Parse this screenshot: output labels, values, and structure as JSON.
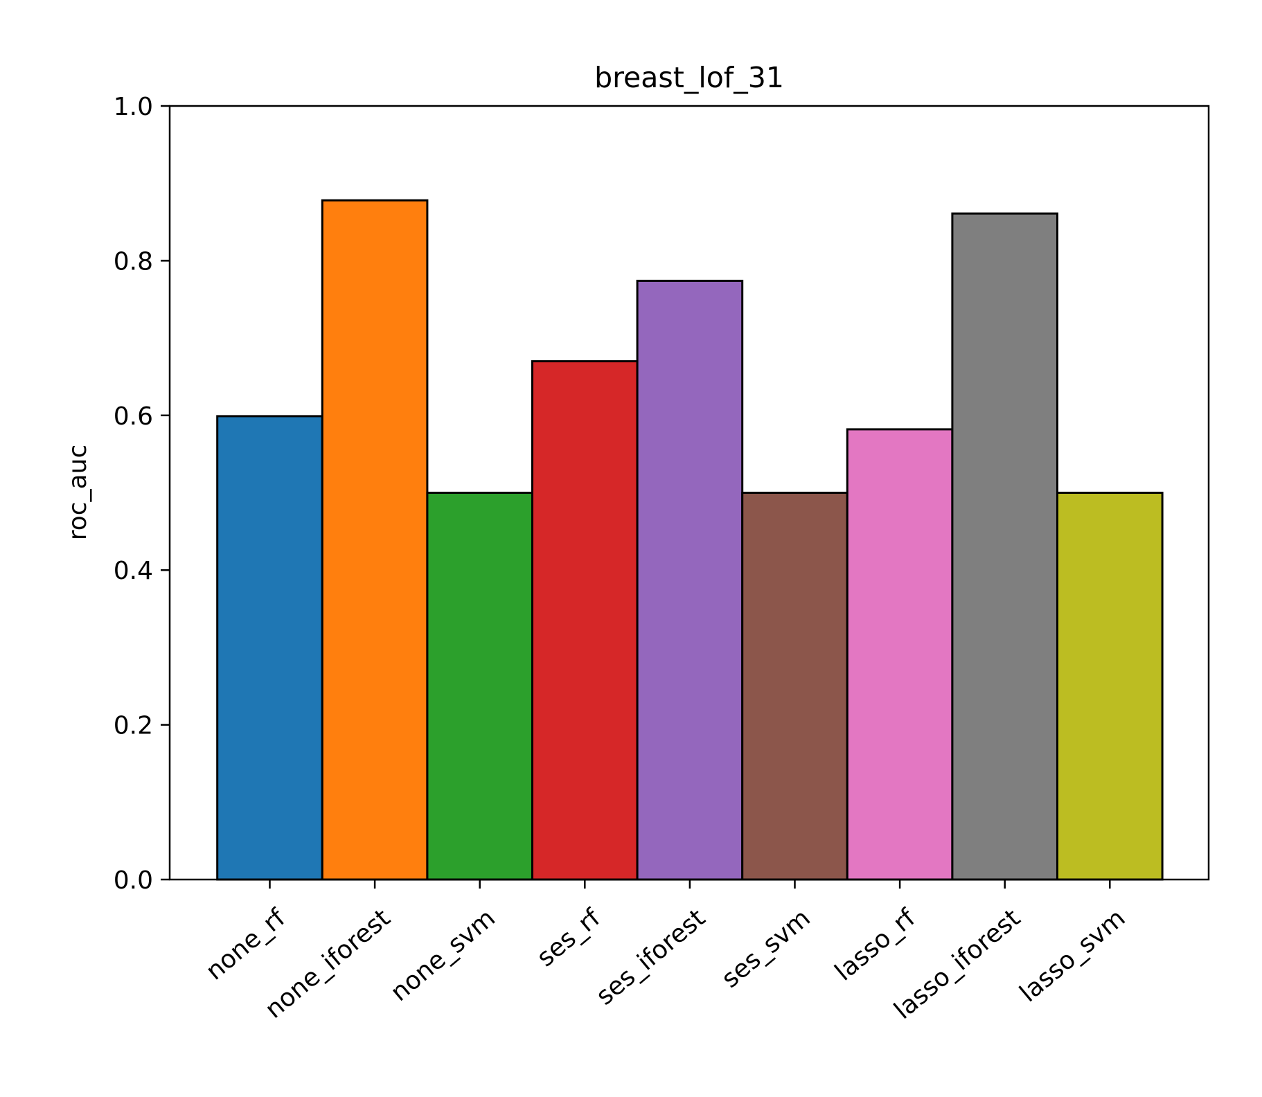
{
  "chart_data": {
    "type": "bar",
    "title": "breast_lof_31",
    "xlabel": "",
    "ylabel": "roc_auc",
    "ylim": [
      0.0,
      1.0
    ],
    "yticks": [
      "0.0",
      "0.2",
      "0.4",
      "0.6",
      "0.8",
      "1.0"
    ],
    "categories": [
      "none_rf",
      "none_iforest",
      "none_svm",
      "ses_rf",
      "ses_iforest",
      "ses_svm",
      "lasso_rf",
      "lasso_iforest",
      "lasso_svm"
    ],
    "values": [
      0.599,
      0.878,
      0.5,
      0.67,
      0.774,
      0.5,
      0.582,
      0.861,
      0.5
    ],
    "colors": [
      "#1f77b4",
      "#ff7f0e",
      "#2ca02c",
      "#d62728",
      "#9467bd",
      "#8c564b",
      "#e377c2",
      "#7f7f7f",
      "#bcbd22"
    ],
    "grid": false,
    "legend": "none"
  }
}
